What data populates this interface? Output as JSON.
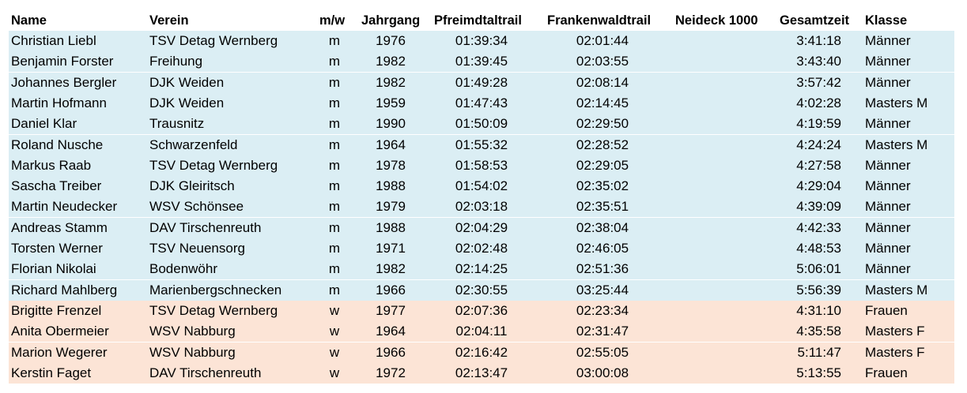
{
  "colors": {
    "men_row_bg": "#dbeef4",
    "women_row_bg": "#fce4d6"
  },
  "columns": [
    "Name",
    "Verein",
    "m/w",
    "Jahrgang",
    "Pfreimdtaltrail",
    "Frankenwaldtrail",
    "Neideck 1000",
    "Gesamtzeit",
    "Klasse"
  ],
  "rows": [
    {
      "name": "Christian Liebl",
      "verein": "TSV Detag Wernberg",
      "mw": "m",
      "jahrgang": "1976",
      "pfreimdtaltrail": "01:39:34",
      "frankenwaldtrail": "02:01:44",
      "neideck": "",
      "gesamtzeit": "3:41:18",
      "klasse": "Männer"
    },
    {
      "name": "Benjamin Forster",
      "verein": "Freihung",
      "mw": "m",
      "jahrgang": "1982",
      "pfreimdtaltrail": "01:39:45",
      "frankenwaldtrail": "02:03:55",
      "neideck": "",
      "gesamtzeit": "3:43:40",
      "klasse": "Männer"
    },
    {
      "name": "Johannes Bergler",
      "verein": "DJK Weiden",
      "mw": "m",
      "jahrgang": "1982",
      "pfreimdtaltrail": "01:49:28",
      "frankenwaldtrail": "02:08:14",
      "neideck": "",
      "gesamtzeit": "3:57:42",
      "klasse": "Männer"
    },
    {
      "name": "Martin Hofmann",
      "verein": "DJK Weiden",
      "mw": "m",
      "jahrgang": "1959",
      "pfreimdtaltrail": "01:47:43",
      "frankenwaldtrail": "02:14:45",
      "neideck": "",
      "gesamtzeit": "4:02:28",
      "klasse": "Masters M"
    },
    {
      "name": "Daniel Klar",
      "verein": "Trausnitz",
      "mw": "m",
      "jahrgang": "1990",
      "pfreimdtaltrail": "01:50:09",
      "frankenwaldtrail": "02:29:50",
      "neideck": "",
      "gesamtzeit": "4:19:59",
      "klasse": "Männer"
    },
    {
      "name": "Roland Nusche",
      "verein": "Schwarzenfeld",
      "mw": "m",
      "jahrgang": "1964",
      "pfreimdtaltrail": "01:55:32",
      "frankenwaldtrail": "02:28:52",
      "neideck": "",
      "gesamtzeit": "4:24:24",
      "klasse": "Masters M"
    },
    {
      "name": "Markus Raab",
      "verein": "TSV Detag Wernberg",
      "mw": "m",
      "jahrgang": "1978",
      "pfreimdtaltrail": "01:58:53",
      "frankenwaldtrail": "02:29:05",
      "neideck": "",
      "gesamtzeit": "4:27:58",
      "klasse": "Männer"
    },
    {
      "name": "Sascha Treiber",
      "verein": "DJK Gleiritsch",
      "mw": "m",
      "jahrgang": "1988",
      "pfreimdtaltrail": "01:54:02",
      "frankenwaldtrail": "02:35:02",
      "neideck": "",
      "gesamtzeit": "4:29:04",
      "klasse": "Männer"
    },
    {
      "name": "Martin Neudecker",
      "verein": "WSV Schönsee",
      "mw": "m",
      "jahrgang": "1979",
      "pfreimdtaltrail": "02:03:18",
      "frankenwaldtrail": "02:35:51",
      "neideck": "",
      "gesamtzeit": "4:39:09",
      "klasse": "Männer"
    },
    {
      "name": "Andreas Stamm",
      "verein": "DAV Tirschenreuth",
      "mw": "m",
      "jahrgang": "1988",
      "pfreimdtaltrail": "02:04:29",
      "frankenwaldtrail": "02:38:04",
      "neideck": "",
      "gesamtzeit": "4:42:33",
      "klasse": "Männer"
    },
    {
      "name": "Torsten Werner",
      "verein": "TSV Neuensorg",
      "mw": "m",
      "jahrgang": "1971",
      "pfreimdtaltrail": "02:02:48",
      "frankenwaldtrail": "02:46:05",
      "neideck": "",
      "gesamtzeit": "4:48:53",
      "klasse": "Männer"
    },
    {
      "name": "Florian Nikolai",
      "verein": "Bodenwöhr",
      "mw": "m",
      "jahrgang": "1982",
      "pfreimdtaltrail": "02:14:25",
      "frankenwaldtrail": "02:51:36",
      "neideck": "",
      "gesamtzeit": "5:06:01",
      "klasse": "Männer"
    },
    {
      "name": "Richard Mahlberg",
      "verein": "Marienbergschnecken",
      "mw": "m",
      "jahrgang": "1966",
      "pfreimdtaltrail": "02:30:55",
      "frankenwaldtrail": "03:25:44",
      "neideck": "",
      "gesamtzeit": "5:56:39",
      "klasse": "Masters M"
    },
    {
      "name": "Brigitte Frenzel",
      "verein": "TSV Detag Wernberg",
      "mw": "w",
      "jahrgang": "1977",
      "pfreimdtaltrail": "02:07:36",
      "frankenwaldtrail": "02:23:34",
      "neideck": "",
      "gesamtzeit": "4:31:10",
      "klasse": "Frauen"
    },
    {
      "name": "Anita Obermeier",
      "verein": "WSV Nabburg",
      "mw": "w",
      "jahrgang": "1964",
      "pfreimdtaltrail": "02:04:11",
      "frankenwaldtrail": "02:31:47",
      "neideck": "",
      "gesamtzeit": "4:35:58",
      "klasse": "Masters F"
    },
    {
      "name": "Marion Wegerer",
      "verein": "WSV Nabburg",
      "mw": "w",
      "jahrgang": "1966",
      "pfreimdtaltrail": "02:16:42",
      "frankenwaldtrail": "02:55:05",
      "neideck": "",
      "gesamtzeit": "5:11:47",
      "klasse": "Masters F"
    },
    {
      "name": "Kerstin Faget",
      "verein": "DAV Tirschenreuth",
      "mw": "w",
      "jahrgang": "1972",
      "pfreimdtaltrail": "02:13:47",
      "frankenwaldtrail": "03:00:08",
      "neideck": "",
      "gesamtzeit": "5:13:55",
      "klasse": "Frauen"
    }
  ]
}
